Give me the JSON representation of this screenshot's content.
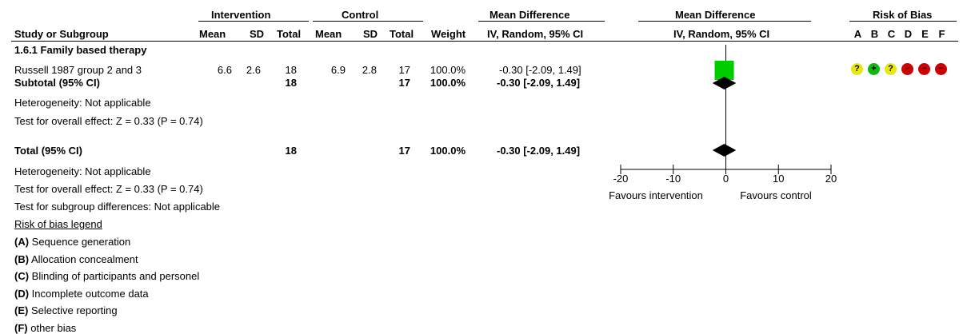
{
  "header": {
    "intervention": "Intervention",
    "control": "Control",
    "mean_difference": "Mean Difference",
    "mean_difference_plot": "Mean Difference",
    "risk_of_bias": "Risk of Bias",
    "study_or_subgroup": "Study or Subgroup",
    "mean": "Mean",
    "sd": "SD",
    "total": "Total",
    "weight": "Weight",
    "method": "IV, Random, 95% CI",
    "method_plot": "IV, Random, 95% CI",
    "rob_letters": [
      "A",
      "B",
      "C",
      "D",
      "E",
      "F"
    ]
  },
  "subgroup": {
    "title": "1.6.1 Family based therapy",
    "study": {
      "name": "Russell 1987 group 2 and 3",
      "int_mean": "6.6",
      "int_sd": "2.6",
      "int_total": "18",
      "ctl_mean": "6.9",
      "ctl_sd": "2.8",
      "ctl_total": "17",
      "weight": "100.0%",
      "md": "-0.30 [-2.09, 1.49]"
    },
    "subtotal": {
      "label": "Subtotal (95% CI)",
      "int_total": "18",
      "ctl_total": "17",
      "weight": "100.0%",
      "md": "-0.30 [-2.09, 1.49]"
    },
    "heterogeneity": "Heterogeneity: Not applicable",
    "overall_effect": "Test for overall effect: Z = 0.33 (P = 0.74)"
  },
  "total": {
    "label": "Total (95% CI)",
    "int_total": "18",
    "ctl_total": "17",
    "weight": "100.0%",
    "md": "-0.30 [-2.09, 1.49]",
    "heterogeneity": "Heterogeneity: Not applicable",
    "overall_effect": "Test for overall effect: Z = 0.33 (P = 0.74)",
    "subgroup_diff": "Test for subgroup differences: Not applicable"
  },
  "legend": {
    "title": "Risk of bias legend",
    "items": [
      {
        "key": "(A)",
        "text": " Sequence generation"
      },
      {
        "key": "(B)",
        "text": " Allocation concealment"
      },
      {
        "key": "(C)",
        "text": " Blinding of participants and personel"
      },
      {
        "key": "(D)",
        "text": " Incomplete outcome data"
      },
      {
        "key": "(E)",
        "text": " Selective reporting"
      },
      {
        "key": "(F)",
        "text": " other bias"
      }
    ]
  },
  "risk_of_bias": [
    {
      "symbol": "?",
      "color": "#e8e80e",
      "text_color": "#000000"
    },
    {
      "symbol": "+",
      "color": "#12b812",
      "text_color": "#000000"
    },
    {
      "symbol": "?",
      "color": "#e8e80e",
      "text_color": "#000000"
    },
    {
      "symbol": "−",
      "color": "#cc0000",
      "text_color": "#000000"
    },
    {
      "symbol": "−",
      "color": "#cc0000",
      "text_color": "#000000"
    },
    {
      "symbol": "−",
      "color": "#cc0000",
      "text_color": "#000000"
    }
  ],
  "axis": {
    "ticks": [
      "-20",
      "-10",
      "0",
      "10",
      "20"
    ],
    "favours_left": "Favours intervention",
    "favours_right": "Favours control"
  },
  "chart_data": {
    "type": "forest",
    "x_range": [
      -20,
      20
    ],
    "tick_values": [
      -20,
      -10,
      0,
      10,
      20
    ],
    "reference_line": 0,
    "square_color": "#00cc00",
    "rows": [
      {
        "label": "Russell 1987 group 2 and 3",
        "kind": "study",
        "estimate": -0.3,
        "ci": [
          -2.09,
          1.49
        ],
        "weight": 100.0
      },
      {
        "label": "Subtotal (95% CI)",
        "kind": "diamond",
        "estimate": -0.3,
        "ci": [
          -2.09,
          1.49
        ]
      },
      {
        "label": "Total (95% CI)",
        "kind": "diamond",
        "estimate": -0.3,
        "ci": [
          -2.09,
          1.49
        ]
      }
    ]
  }
}
